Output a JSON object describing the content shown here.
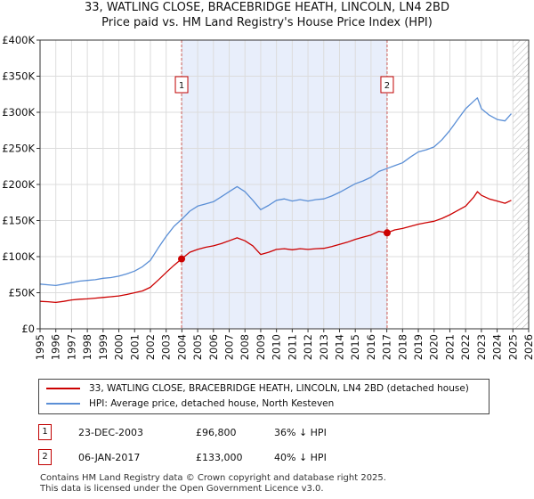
{
  "chart_data": {
    "type": "line",
    "title": "33, WATLING CLOSE, BRACEBRIDGE HEATH, LINCOLN, LN4 2BD",
    "subtitle": "Price paid vs. HM Land Registry's House Price Index (HPI)",
    "xlim": [
      1995,
      2026
    ],
    "ylim": [
      0,
      400000
    ],
    "x_ticks": [
      "1995",
      "1996",
      "1997",
      "1998",
      "1999",
      "2000",
      "2001",
      "2002",
      "2003",
      "2004",
      "2005",
      "2006",
      "2007",
      "2008",
      "2009",
      "2010",
      "2011",
      "2012",
      "2013",
      "2014",
      "2015",
      "2016",
      "2017",
      "2018",
      "2019",
      "2020",
      "2021",
      "2022",
      "2023",
      "2024",
      "2025",
      "2026"
    ],
    "y_ticks": [
      {
        "value": 0,
        "label": "£0"
      },
      {
        "value": 50000,
        "label": "£50K"
      },
      {
        "value": 100000,
        "label": "£100K"
      },
      {
        "value": 150000,
        "label": "£150K"
      },
      {
        "value": 200000,
        "label": "£200K"
      },
      {
        "value": 250000,
        "label": "£250K"
      },
      {
        "value": 300000,
        "label": "£300K"
      },
      {
        "value": 350000,
        "label": "£350K"
      },
      {
        "value": 400000,
        "label": "£400K"
      }
    ],
    "shaded_period": [
      2003.98,
      2017.02
    ],
    "forecast_start": 2025.0,
    "series": [
      {
        "name": "33, WATLING CLOSE, BRACEBRIDGE HEATH, LINCOLN, LN4 2BD (detached house)",
        "color": "#cc0000",
        "x": [
          1995.0,
          1995.5,
          1996.0,
          1996.5,
          1997.0,
          1997.5,
          1998.0,
          1998.5,
          1999.0,
          1999.5,
          2000.0,
          2000.5,
          2001.0,
          2001.5,
          2002.0,
          2002.5,
          2003.0,
          2003.5,
          2003.98,
          2004.5,
          2005.0,
          2005.5,
          2006.0,
          2006.5,
          2007.0,
          2007.5,
          2008.0,
          2008.5,
          2009.0,
          2009.5,
          2010.0,
          2010.5,
          2011.0,
          2011.5,
          2012.0,
          2012.5,
          2013.0,
          2013.5,
          2014.0,
          2014.5,
          2015.0,
          2015.5,
          2016.0,
          2016.5,
          2017.02,
          2017.5,
          2018.0,
          2018.5,
          2019.0,
          2019.5,
          2020.0,
          2020.5,
          2021.0,
          2021.5,
          2022.0,
          2022.5,
          2022.75,
          2023.0,
          2023.5,
          2024.0,
          2024.5,
          2024.9
        ],
        "values": [
          38000,
          37500,
          36500,
          38000,
          40000,
          41000,
          41500,
          42500,
          43500,
          44500,
          45500,
          47500,
          50000,
          52500,
          57500,
          67500,
          78000,
          88000,
          96800,
          106000,
          110000,
          113000,
          115000,
          118000,
          122000,
          126000,
          122000,
          115000,
          103000,
          106000,
          110000,
          111000,
          109500,
          111000,
          110000,
          111000,
          111500,
          114000,
          117000,
          120000,
          124000,
          127000,
          130000,
          135000,
          133000,
          137000,
          139000,
          142000,
          145000,
          147000,
          149000,
          153000,
          158000,
          164000,
          170000,
          182000,
          190000,
          185000,
          180000,
          177000,
          174000,
          178000
        ]
      },
      {
        "name": "HPI: Average price, detached house, North Kesteven",
        "color": "#5b8fd6",
        "x": [
          1995.0,
          1995.5,
          1996.0,
          1996.5,
          1997.0,
          1997.5,
          1998.0,
          1998.5,
          1999.0,
          1999.5,
          2000.0,
          2000.5,
          2001.0,
          2001.5,
          2002.0,
          2002.5,
          2003.0,
          2003.5,
          2004.0,
          2004.5,
          2005.0,
          2005.5,
          2006.0,
          2006.5,
          2007.0,
          2007.5,
          2008.0,
          2008.5,
          2009.0,
          2009.5,
          2010.0,
          2010.5,
          2011.0,
          2011.5,
          2012.0,
          2012.5,
          2013.0,
          2013.5,
          2014.0,
          2014.5,
          2015.0,
          2015.5,
          2016.0,
          2016.5,
          2017.0,
          2017.5,
          2018.0,
          2018.5,
          2019.0,
          2019.5,
          2020.0,
          2020.5,
          2021.0,
          2021.5,
          2022.0,
          2022.5,
          2022.75,
          2023.0,
          2023.5,
          2024.0,
          2024.5,
          2024.9
        ],
        "values": [
          62000,
          61000,
          60000,
          62000,
          64000,
          66000,
          67000,
          68000,
          70000,
          71000,
          73000,
          76000,
          80000,
          86000,
          95000,
          112000,
          128000,
          142000,
          152000,
          163000,
          170000,
          173000,
          176000,
          183000,
          190000,
          197000,
          190000,
          178000,
          165000,
          171000,
          178000,
          180000,
          177000,
          179000,
          177000,
          179000,
          180000,
          184000,
          189000,
          195000,
          201000,
          205000,
          210000,
          218000,
          222000,
          226000,
          230000,
          238000,
          245000,
          248000,
          252000,
          262000,
          275000,
          290000,
          305000,
          315000,
          320000,
          305000,
          296000,
          290000,
          288000,
          298000
        ]
      }
    ],
    "sale_points": [
      {
        "label": "1",
        "x": 2003.98,
        "value": 96800
      },
      {
        "label": "2",
        "x": 2017.02,
        "value": 133000
      }
    ]
  },
  "legend": {
    "items": [
      {
        "label": "33, WATLING CLOSE, BRACEBRIDGE HEATH, LINCOLN, LN4 2BD (detached house)",
        "color": "#cc0000"
      },
      {
        "label": "HPI: Average price, detached house, North Kesteven",
        "color": "#5b8fd6"
      }
    ]
  },
  "sales": [
    {
      "marker": "1",
      "date": "23-DEC-2003",
      "price": "£96,800",
      "hpi": "36% ↓ HPI"
    },
    {
      "marker": "2",
      "date": "06-JAN-2017",
      "price": "£133,000",
      "hpi": "40% ↓ HPI"
    }
  ],
  "footer": {
    "line1": "Contains HM Land Registry data © Crown copyright and database right 2025.",
    "line2": "This data is licensed under the Open Government Licence v3.0."
  },
  "colors": {
    "shade": "#e8eefb",
    "grid": "#dcdcdc",
    "marker_border": "#c00000"
  }
}
